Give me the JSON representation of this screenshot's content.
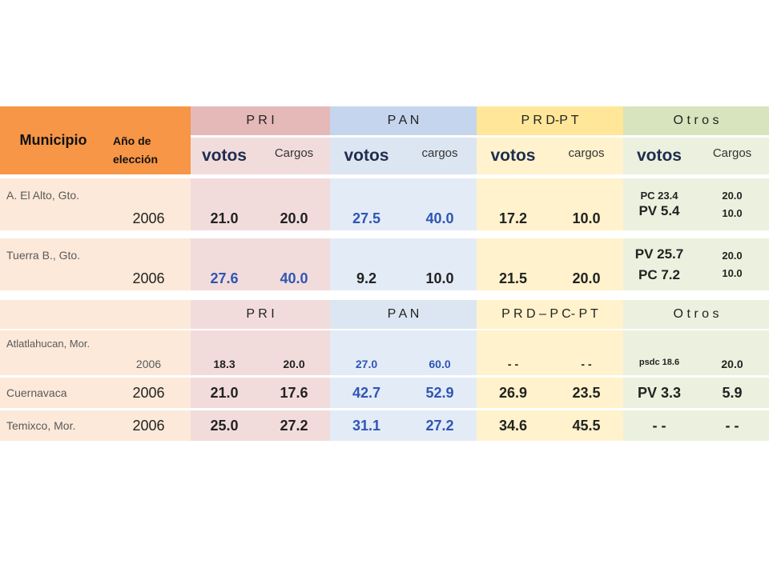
{
  "header": {
    "municipio": "Municipio",
    "anio": "Año de elección",
    "parties": [
      "P  R  I",
      "P  A  N",
      "P R D-P T",
      "O t r o s"
    ],
    "sub": [
      "votos",
      "Cargos",
      "votos",
      "cargos",
      "votos",
      "cargos",
      "votos",
      "Cargos"
    ]
  },
  "rows": [
    {
      "municipio": "A. El Alto, Gto.",
      "anio": "2006",
      "pri_v": "21.0",
      "pri_c": "20.0",
      "pan_v": "27.5",
      "pan_c": "40.0",
      "prd_v": "17.2",
      "prd_c": "10.0",
      "otros_v": [
        "PC  23.4",
        "PV  5.4"
      ],
      "otros_c": [
        "20.0",
        "10.0"
      ]
    },
    {
      "municipio": "Tuerra B., Gto.",
      "anio": "2006",
      "pri_v": "27.6",
      "pri_c": "40.0",
      "pan_v": "9.2",
      "pan_c": "10.0",
      "prd_v": "21.5",
      "prd_c": "20.0",
      "otros_v": [
        "PV 25.7",
        "PC  7.2"
      ],
      "otros_c": [
        "20.0",
        "10.0"
      ]
    }
  ],
  "header2": {
    "parties": [
      "P  R  I",
      "P  A  N",
      "P R D – P C- P T",
      "O t r o s"
    ]
  },
  "rows2": [
    {
      "municipio": "Atlatlahucan, Mor.",
      "anio": "2006",
      "pri_v": "18.3",
      "pri_c": "20.0",
      "pan_v": "27.0",
      "pan_c": "60.0",
      "prd_v": "- -",
      "prd_c": "- -",
      "otros_v": "psdc  18.6",
      "otros_c": "20.0"
    },
    {
      "municipio": "Cuernavaca",
      "anio": "2006",
      "pri_v": "21.0",
      "pri_c": "17.6",
      "pan_v": "42.7",
      "pan_c": "52.9",
      "prd_v": "26.9",
      "prd_c": "23.5",
      "otros_v": "PV 3.3",
      "otros_c": "5.9"
    },
    {
      "municipio": "Temixco, Mor.",
      "anio": "2006",
      "pri_v": "25.0",
      "pri_c": "27.2",
      "pan_v": "31.1",
      "pan_c": "27.2",
      "prd_v": "34.6",
      "prd_c": "45.5",
      "otros_v": "- -",
      "otros_c": "- -"
    }
  ],
  "colors": {
    "orange": "#f79646",
    "pri_head": "#e5b9b8",
    "pan_head": "#c5d5ee",
    "prd_head": "#ffe699",
    "otros_head": "#d7e4bd",
    "peach": "#fde9d9",
    "pri_body": "#f2dcdb",
    "pan_body": "#dce6f2",
    "prd_body": "#fff2cc",
    "otros_body": "#ebf1de"
  }
}
